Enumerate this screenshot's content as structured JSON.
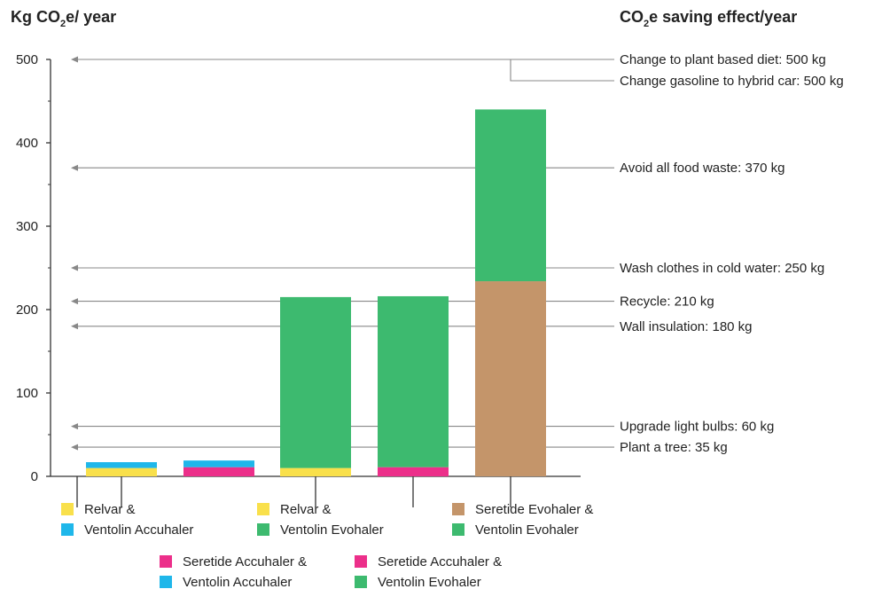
{
  "chart_data": {
    "type": "bar",
    "stacked": true,
    "y_title": {
      "pre": "Kg CO",
      "sub": "2",
      "post": "e/ year"
    },
    "right_title": {
      "pre": "CO",
      "sub": "2",
      "post": "e saving effect/year"
    },
    "ylim": [
      0,
      500
    ],
    "yticks": [
      0,
      100,
      200,
      300,
      400,
      500
    ],
    "grid": false,
    "bars": [
      {
        "segments": [
          {
            "color": "#f9e04b",
            "value": 10
          },
          {
            "color": "#1fb7ea",
            "value": 7
          }
        ]
      },
      {
        "segments": [
          {
            "color": "#ec2f8a",
            "value": 11
          },
          {
            "color": "#1fb7ea",
            "value": 8
          }
        ]
      },
      {
        "segments": [
          {
            "color": "#f9e04b",
            "value": 10
          },
          {
            "color": "#3dba6f",
            "value": 205
          }
        ]
      },
      {
        "segments": [
          {
            "color": "#ec2f8a",
            "value": 11
          },
          {
            "color": "#3dba6f",
            "value": 205
          }
        ]
      },
      {
        "segments": [
          {
            "color": "#c4956a",
            "value": 234
          },
          {
            "color": "#3dba6f",
            "value": 206
          }
        ]
      }
    ],
    "reference_lines": [
      {
        "value": 500,
        "label": "Change to plant based diet: 500 kg"
      },
      {
        "value": 500,
        "label": "Change gasoline to hybrid car: 500 kg"
      },
      {
        "value": 370,
        "label": "Avoid all food waste: 370 kg"
      },
      {
        "value": 250,
        "label": "Wash clothes in cold water: 250 kg"
      },
      {
        "value": 210,
        "label": "Recycle: 210 kg"
      },
      {
        "value": 180,
        "label": "Wall insulation: 180 kg"
      },
      {
        "value": 60,
        "label": "Upgrade light bulbs: 60 kg"
      },
      {
        "value": 35,
        "label": "Plant a tree: 35 kg"
      }
    ],
    "legend": [
      {
        "colors": [
          "#f9e04b",
          "#1fb7ea"
        ],
        "lines": [
          "Relvar &",
          "Ventolin Accuhaler"
        ]
      },
      {
        "colors": [
          "#f9e04b",
          "#3dba6f"
        ],
        "lines": [
          "Relvar &",
          "Ventolin Evohaler"
        ]
      },
      {
        "colors": [
          "#c4956a",
          "#3dba6f"
        ],
        "lines": [
          "Seretide Evohaler &",
          "Ventolin Evohaler"
        ]
      },
      {
        "colors": [
          "#ec2f8a",
          "#1fb7ea"
        ],
        "lines": [
          "Seretide Accuhaler &",
          "Ventolin Accuhaler"
        ]
      },
      {
        "colors": [
          "#ec2f8a",
          "#3dba6f"
        ],
        "lines": [
          "Seretide Accuhaler &",
          "Ventolin Evohaler"
        ]
      }
    ]
  }
}
